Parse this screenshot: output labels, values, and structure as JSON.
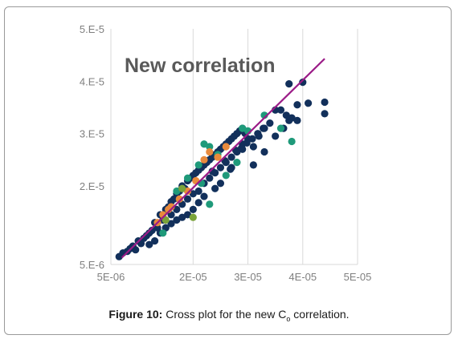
{
  "caption": {
    "label": "Figure 10:",
    "text_before": " Cross plot for the new C",
    "subscript": "o",
    "text_after": " correlation."
  },
  "chart_data": {
    "type": "scatter",
    "title": "New correlation",
    "xlabel": "",
    "ylabel": "",
    "xlim": [
      5e-06,
      5e-05
    ],
    "ylim": [
      5e-06,
      5e-05
    ],
    "x_ticks": [
      5e-06,
      1e-05,
      1.5e-05,
      2e-05,
      2.5e-05,
      3e-05,
      3.5e-05,
      4e-05,
      4.5e-05,
      5e-05
    ],
    "x_tick_labels": [
      "5E-06",
      "",
      "",
      "2E-05",
      "",
      "3E-05",
      "",
      "4E-05",
      "",
      "5E-05"
    ],
    "y_ticks": [
      5e-06,
      1e-05,
      1.5e-05,
      2e-05,
      2.5e-05,
      3e-05,
      3.5e-05,
      4e-05,
      4.5e-05,
      5e-05
    ],
    "y_tick_labels": [
      "5.E-6",
      "",
      "",
      "2.E-5",
      "",
      "3.E-5",
      "",
      "4.E-5",
      "",
      "5.E-5"
    ],
    "grid": "vertical",
    "colors": {
      "navy": "#12305b",
      "teal": "#1f9a7a",
      "orange": "#e88a3c",
      "olive": "#7aa33a",
      "line": "#9b1b87",
      "grid": "#d9d9d9",
      "axis_text": "#7f7f7f",
      "title": "#595959"
    },
    "series": [
      {
        "color": "navy",
        "points": [
          [
            6.5e-06,
            6.5e-06
          ],
          [
            7.2e-06,
            7.2e-06
          ],
          [
            8e-06,
            7.5e-06
          ],
          [
            8.5e-06,
            8e-06
          ],
          [
            9e-06,
            8.5e-06
          ],
          [
            9.5e-06,
            7.8e-06
          ],
          [
            1e-05,
            9.5e-06
          ],
          [
            1.05e-05,
            9e-06
          ],
          [
            1.1e-05,
            1e-05
          ],
          [
            1.15e-05,
            1.05e-05
          ],
          [
            1.2e-05,
            1.1e-05
          ],
          [
            1.25e-05,
            1.15e-05
          ],
          [
            1.3e-05,
            1.3e-05
          ],
          [
            1.35e-05,
            1.2e-05
          ],
          [
            1.4e-05,
            1.45e-05
          ],
          [
            1.4e-05,
            1.1e-05
          ],
          [
            1.45e-05,
            1.35e-05
          ],
          [
            1.5e-05,
            1.55e-05
          ],
          [
            1.5e-05,
            1.2e-05
          ],
          [
            1.55e-05,
            1.6e-05
          ],
          [
            1.6e-05,
            1.45e-05
          ],
          [
            1.6e-05,
            1.7e-05
          ],
          [
            1.65e-05,
            1.75e-05
          ],
          [
            1.7e-05,
            1.55e-05
          ],
          [
            1.7e-05,
            1.85e-05
          ],
          [
            1.75e-05,
            1.9e-05
          ],
          [
            1.8e-05,
            1.65e-05
          ],
          [
            1.8e-05,
            2e-05
          ],
          [
            1.85e-05,
            1.95e-05
          ],
          [
            1.9e-05,
            2.1e-05
          ],
          [
            1.9e-05,
            1.75e-05
          ],
          [
            1.95e-05,
            2.15e-05
          ],
          [
            2e-05,
            2.2e-05
          ],
          [
            2e-05,
            1.85e-05
          ],
          [
            2.05e-05,
            2.25e-05
          ],
          [
            2.1e-05,
            2.3e-05
          ],
          [
            2.1e-05,
            1.9e-05
          ],
          [
            2.15e-05,
            2.35e-05
          ],
          [
            2.2e-05,
            2.4e-05
          ],
          [
            2.2e-05,
            2.05e-05
          ],
          [
            2.25e-05,
            2.45e-05
          ],
          [
            2.3e-05,
            2.5e-05
          ],
          [
            2.3e-05,
            2.15e-05
          ],
          [
            2.35e-05,
            2.55e-05
          ],
          [
            2.4e-05,
            2.6e-05
          ],
          [
            2.4e-05,
            2.25e-05
          ],
          [
            2.45e-05,
            2.65e-05
          ],
          [
            2.5e-05,
            2.7e-05
          ],
          [
            2.5e-05,
            2.35e-05
          ],
          [
            2.55e-05,
            2.75e-05
          ],
          [
            2.6e-05,
            2.8e-05
          ],
          [
            2.6e-05,
            2.45e-05
          ],
          [
            2.65e-05,
            2.85e-05
          ],
          [
            2.7e-05,
            2.9e-05
          ],
          [
            2.7e-05,
            2.55e-05
          ],
          [
            2.75e-05,
            2.95e-05
          ],
          [
            2.8e-05,
            3e-05
          ],
          [
            2.8e-05,
            2.65e-05
          ],
          [
            2.85e-05,
            3.05e-05
          ],
          [
            2.9e-05,
            3.1e-05
          ],
          [
            2.9e-05,
            2.8e-05
          ],
          [
            2.95e-05,
            3e-05
          ],
          [
            3e-05,
            2.9e-05
          ],
          [
            3.1e-05,
            2.75e-05
          ],
          [
            3.2e-05,
            2.95e-05
          ],
          [
            3.3e-05,
            3.1e-05
          ],
          [
            3.4e-05,
            3.2e-05
          ],
          [
            3.5e-05,
            3.45e-05
          ],
          [
            3.6e-05,
            3.45e-05
          ],
          [
            3.65e-05,
            3.1e-05
          ],
          [
            3.7e-05,
            3.35e-05
          ],
          [
            3.75e-05,
            3.25e-05
          ],
          [
            3.8e-05,
            3.3e-05
          ],
          [
            3.9e-05,
            3.25e-05
          ],
          [
            3.9e-05,
            3.55e-05
          ],
          [
            3.75e-05,
            3.95e-05
          ],
          [
            4e-05,
            3.98e-05
          ],
          [
            4.1e-05,
            3.58e-05
          ],
          [
            4.4e-05,
            3.6e-05
          ],
          [
            4.4e-05,
            3.38e-05
          ],
          [
            3.1e-05,
            2.4e-05
          ],
          [
            3.3e-05,
            2.65e-05
          ],
          [
            3.5e-05,
            2.95e-05
          ],
          [
            2.9e-05,
            2.7e-05
          ],
          [
            2.7e-05,
            2.35e-05
          ],
          [
            2.5e-05,
            2.05e-05
          ],
          [
            2.4e-05,
            1.95e-05
          ],
          [
            2.2e-05,
            1.8e-05
          ],
          [
            2.1e-05,
            1.68e-05
          ],
          [
            2e-05,
            1.55e-05
          ],
          [
            1.9e-05,
            1.45e-05
          ],
          [
            1.8e-05,
            1.4e-05
          ],
          [
            1.7e-05,
            1.35e-05
          ],
          [
            1.6e-05,
            1.28e-05
          ],
          [
            1.5e-05,
            1.2e-05
          ],
          [
            1.3e-05,
            9.5e-06
          ],
          [
            1.2e-05,
            8.8e-06
          ],
          [
            2.35e-05,
            2.28e-05
          ],
          [
            2.58e-05,
            2.48e-05
          ],
          [
            2.68e-05,
            2.32e-05
          ],
          [
            2.78e-05,
            2.68e-05
          ],
          [
            2.88e-05,
            2.72e-05
          ],
          [
            2.98e-05,
            2.82e-05
          ],
          [
            3.08e-05,
            2.9e-05
          ],
          [
            3.18e-05,
            3e-05
          ],
          [
            3.28e-05,
            3.1e-05
          ]
        ]
      },
      {
        "color": "teal",
        "points": [
          [
            1.45e-05,
            1.1e-05
          ],
          [
            1.7e-05,
            1.9e-05
          ],
          [
            1.9e-05,
            2.15e-05
          ],
          [
            2.1e-05,
            2.4e-05
          ],
          [
            2.2e-05,
            2.8e-05
          ],
          [
            2.3e-05,
            2.75e-05
          ],
          [
            2.45e-05,
            2.6e-05
          ],
          [
            2.6e-05,
            2.2e-05
          ],
          [
            2.8e-05,
            2.45e-05
          ],
          [
            2.9e-05,
            3.1e-05
          ],
          [
            3e-05,
            3.05e-05
          ],
          [
            3.3e-05,
            3.35e-05
          ],
          [
            3.6e-05,
            3.1e-05
          ],
          [
            3.8e-05,
            2.85e-05
          ],
          [
            2.3e-05,
            1.65e-05
          ],
          [
            2.15e-05,
            2.05e-05
          ]
        ]
      },
      {
        "color": "orange",
        "points": [
          [
            1.35e-05,
            1.3e-05
          ],
          [
            1.45e-05,
            1.45e-05
          ],
          [
            1.55e-05,
            1.55e-05
          ],
          [
            1.6e-05,
            1.6e-05
          ],
          [
            1.75e-05,
            1.75e-05
          ],
          [
            1.9e-05,
            1.9e-05
          ],
          [
            2.05e-05,
            2.1e-05
          ],
          [
            2.2e-05,
            2.5e-05
          ],
          [
            2.3e-05,
            2.65e-05
          ],
          [
            2.45e-05,
            2.55e-05
          ],
          [
            2.6e-05,
            2.75e-05
          ]
        ]
      },
      {
        "color": "olive",
        "points": [
          [
            1.5e-05,
            1.35e-05
          ],
          [
            1.8e-05,
            1.95e-05
          ],
          [
            2e-05,
            1.4e-05
          ]
        ]
      }
    ],
    "fit_line": {
      "x": [
        7e-06,
        4.4e-05
      ],
      "y": [
        6.3e-06,
        4.43e-05
      ]
    }
  }
}
